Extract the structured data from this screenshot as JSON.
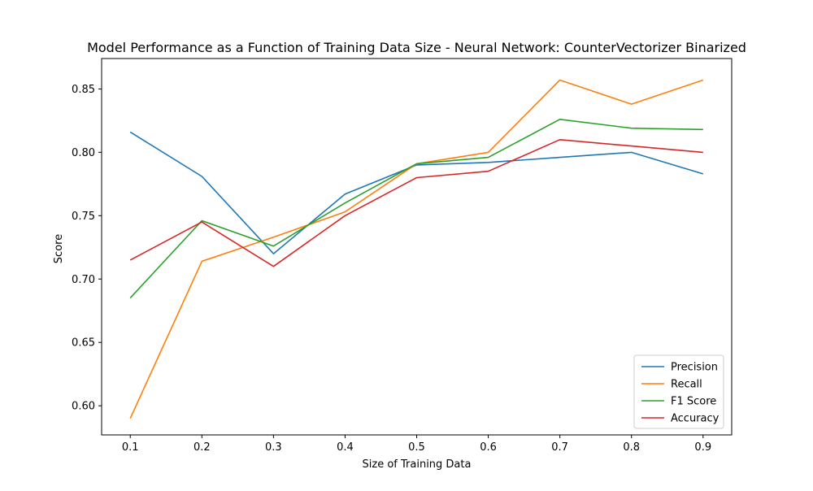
{
  "chart_data": {
    "type": "line",
    "title": "Model Performance as a Function of Training Data Size - Neural Network: CounterVectorizer Binarized",
    "xlabel": "Size of Training Data",
    "ylabel": "Score",
    "x": [
      0.1,
      0.2,
      0.3,
      0.4,
      0.5,
      0.6,
      0.7,
      0.8,
      0.9
    ],
    "x_ticks": [
      "0.1",
      "0.2",
      "0.3",
      "0.4",
      "0.5",
      "0.6",
      "0.7",
      "0.8",
      "0.9"
    ],
    "y_ticks": [
      "0.60",
      "0.65",
      "0.70",
      "0.75",
      "0.80",
      "0.85"
    ],
    "xlim": [
      0.06,
      0.94
    ],
    "ylim": [
      0.577,
      0.874
    ],
    "grid": false,
    "legend_position": "lower-right",
    "series": [
      {
        "name": "Precision",
        "color": "#1f77b4",
        "values": [
          0.816,
          0.781,
          0.72,
          0.767,
          0.79,
          0.792,
          0.796,
          0.8,
          0.783
        ]
      },
      {
        "name": "Recall",
        "color": "#ff7f0e",
        "values": [
          0.59,
          0.714,
          0.733,
          0.753,
          0.791,
          0.8,
          0.857,
          0.838,
          0.857
        ]
      },
      {
        "name": "F1 Score",
        "color": "#2ca02c",
        "values": [
          0.685,
          0.746,
          0.726,
          0.76,
          0.791,
          0.796,
          0.826,
          0.819,
          0.818
        ]
      },
      {
        "name": "Accuracy",
        "color": "#d62728",
        "values": [
          0.715,
          0.745,
          0.71,
          0.75,
          0.78,
          0.785,
          0.81,
          0.805,
          0.8
        ]
      }
    ]
  }
}
